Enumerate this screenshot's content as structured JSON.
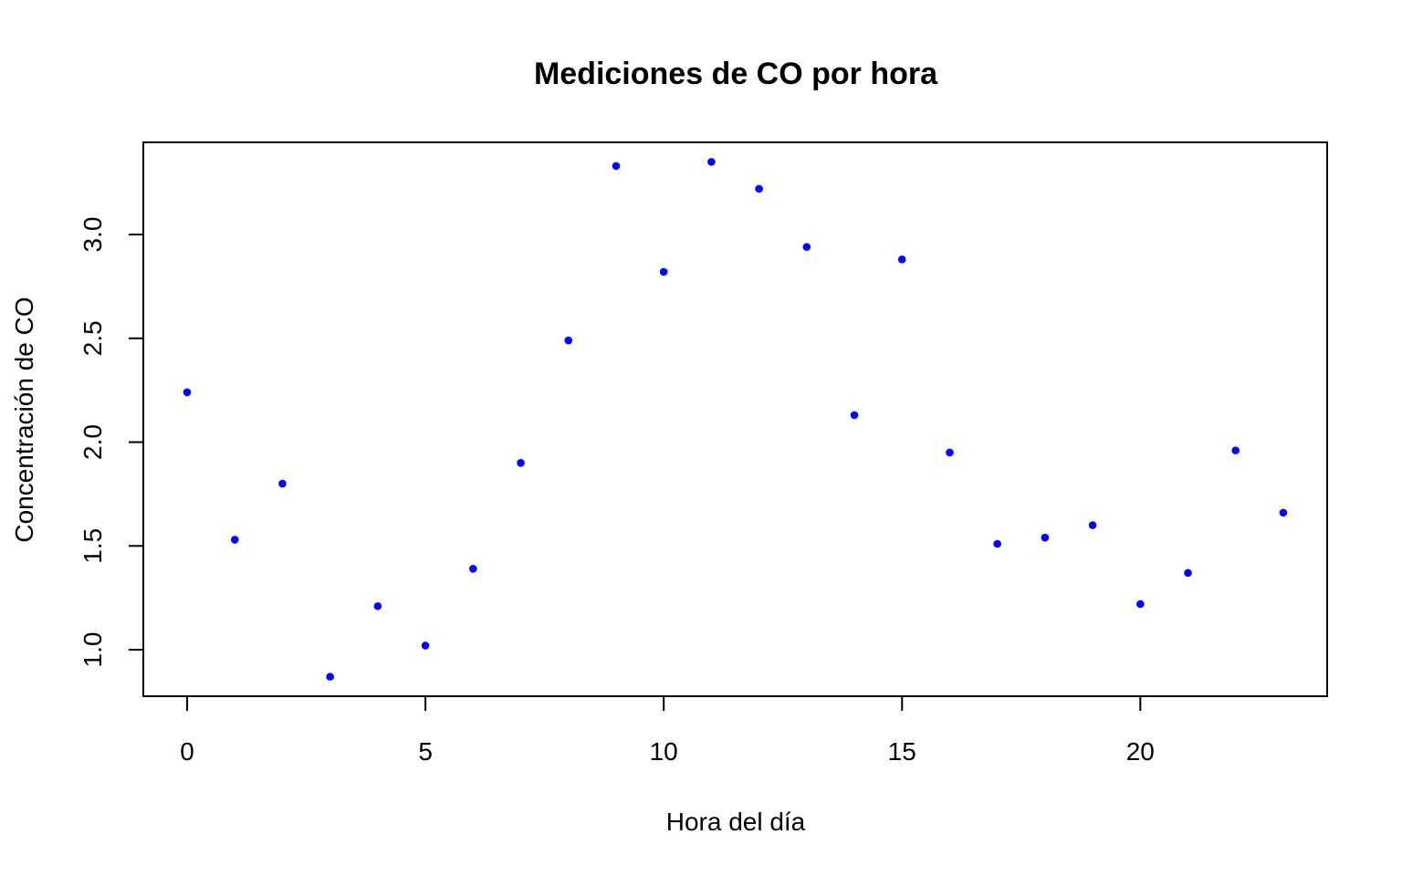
{
  "chart_data": {
    "type": "scatter",
    "title": "Mediciones de CO por hora",
    "xlabel": "Hora del día",
    "ylabel": "Concentración de CO",
    "xlim": [
      -0.92,
      23.92
    ],
    "ylim": [
      0.776,
      3.444
    ],
    "xticks": [
      0,
      5,
      10,
      15,
      20
    ],
    "xtick_labels": [
      "0",
      "5",
      "10",
      "15",
      "20"
    ],
    "yticks": [
      1.0,
      1.5,
      2.0,
      2.5,
      3.0
    ],
    "ytick_labels": [
      "1.0",
      "1.5",
      "2.0",
      "2.5",
      "3.0"
    ],
    "grid": false,
    "point_color": "#0000ff",
    "x": [
      0,
      1,
      2,
      3,
      4,
      5,
      6,
      7,
      8,
      9,
      10,
      11,
      12,
      13,
      14,
      15,
      16,
      17,
      18,
      19,
      20,
      21,
      22,
      23
    ],
    "y": [
      2.24,
      1.53,
      1.8,
      0.87,
      1.21,
      1.02,
      1.39,
      1.9,
      2.49,
      3.33,
      2.82,
      3.35,
      3.22,
      2.94,
      2.13,
      2.88,
      1.95,
      1.51,
      1.54,
      1.6,
      1.22,
      1.37,
      1.96,
      1.66
    ]
  }
}
